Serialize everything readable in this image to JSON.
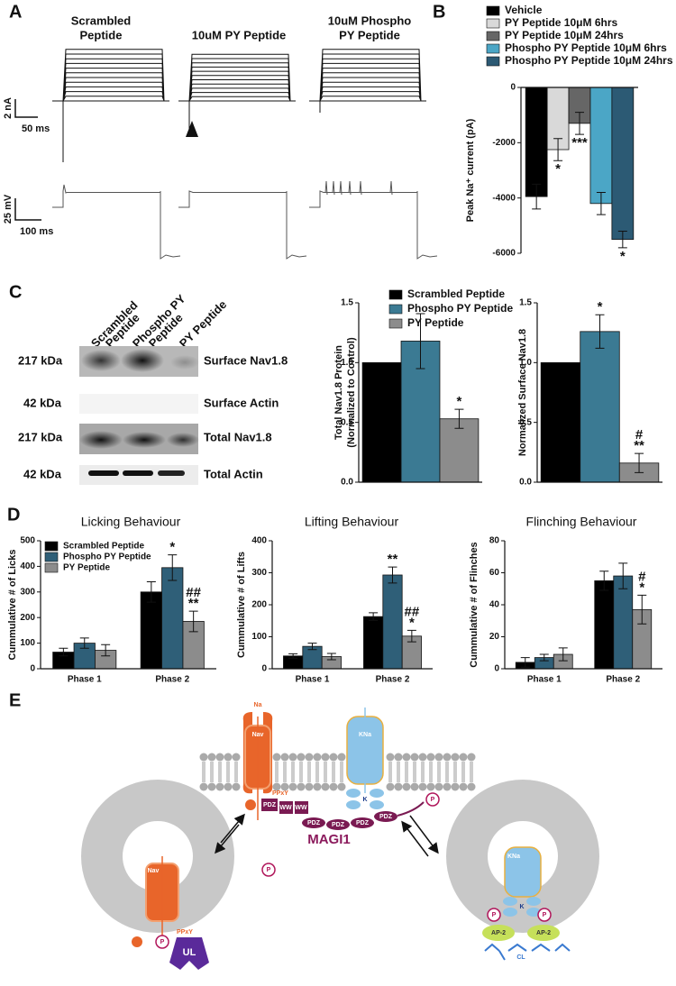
{
  "panels": {
    "a": "A",
    "b": "B",
    "c": "C",
    "d": "D",
    "e": "E"
  },
  "traces": {
    "headers": [
      [
        "Scrambled",
        "Peptide"
      ],
      [
        "10uM PY Peptide"
      ],
      [
        "10uM Phospho",
        "PY Peptide"
      ]
    ],
    "scale_current": "2 nA",
    "scale_time_current": "50 ms",
    "scale_voltage": "25 mV",
    "scale_time_voltage": "100 ms"
  },
  "blot": {
    "lanes": [
      [
        "Scrambled",
        "Peptide"
      ],
      [
        "Phospho PY",
        "Peptide"
      ],
      [
        "PY Peptide"
      ]
    ],
    "rows": [
      {
        "size": "217 kDa",
        "label": "Surface Nav1.8"
      },
      {
        "size": "42 kDa",
        "label": "Surface Actin"
      },
      {
        "size": "217 kDa",
        "label": "Total Nav1.8"
      },
      {
        "size": "42 kDa",
        "label": "Total Actin"
      }
    ]
  },
  "chart_data": [
    {
      "type": "bar",
      "ylabel": "Peak Na⁺ current (pA)",
      "ylim": [
        -6000,
        0
      ],
      "yticks": [
        0,
        -2000,
        -4000,
        -6000
      ],
      "legend": true,
      "series": [
        {
          "name": "Vehicle",
          "color": "#000000",
          "values": [
            -3950
          ],
          "errors": [
            450
          ],
          "annotations": [
            null
          ]
        },
        {
          "name": "PY Peptide 10μM 6hrs",
          "color": "#d9d9d9",
          "values": [
            -2250
          ],
          "errors": [
            400
          ],
          "annotations": [
            [
              "*"
            ]
          ]
        },
        {
          "name": "PY Peptide 10μM 24hrs",
          "color": "#666666",
          "values": [
            -1300
          ],
          "errors": [
            400
          ],
          "annotations": [
            [
              "***"
            ]
          ]
        },
        {
          "name": "Phospho PY Peptide 10μM 6hrs",
          "color": "#4ba6c6",
          "values": [
            -4200
          ],
          "errors": [
            400
          ],
          "annotations": [
            null
          ]
        },
        {
          "name": "Phospho PY Peptide 10μM 24hrs",
          "color": "#2c5a74",
          "values": [
            -5500
          ],
          "errors": [
            300
          ],
          "annotations": [
            [
              "*"
            ]
          ]
        }
      ]
    },
    {
      "type": "bar",
      "ylabel": [
        "Total Nav1.8 Protein",
        "(Normalized to Control)"
      ],
      "ylim": [
        0,
        1.5
      ],
      "yticks": [
        {
          "value": 0,
          "label": "0.0"
        },
        {
          "value": 0.5,
          "label": "0.5"
        },
        {
          "value": 1,
          "label": "1.0"
        },
        {
          "value": 1.5,
          "label": "1.5"
        }
      ],
      "legend": true,
      "series": [
        {
          "name": "Scrambled Peptide",
          "color": "#000000",
          "values": [
            1.0
          ],
          "errors": [
            0
          ],
          "annotations": [
            null
          ]
        },
        {
          "name": "Phospho PY Peptide",
          "color": "#3b7a93",
          "values": [
            1.18
          ],
          "errors": [
            0.23
          ],
          "annotations": [
            null
          ]
        },
        {
          "name": "PY Peptide",
          "color": "#8c8c8c",
          "values": [
            0.53
          ],
          "errors": [
            0.08
          ],
          "annotations": [
            [
              "*"
            ]
          ]
        }
      ]
    },
    {
      "type": "bar",
      "ylabel": [
        "Normalized Surface Nav1.8"
      ],
      "ylim": [
        0,
        1.5
      ],
      "yticks": [
        {
          "value": 0,
          "label": "0.0"
        },
        {
          "value": 0.5,
          "label": "0.5"
        },
        {
          "value": 1,
          "label": "1.0"
        },
        {
          "value": 1.5,
          "label": "1.5"
        }
      ],
      "legend": false,
      "series": [
        {
          "name": "Scrambled Peptide",
          "color": "#000000",
          "values": [
            1.0
          ],
          "errors": [
            0
          ],
          "annotations": [
            null
          ]
        },
        {
          "name": "Phospho PY Peptide",
          "color": "#3b7a93",
          "values": [
            1.26
          ],
          "errors": [
            0.14
          ],
          "annotations": [
            [
              "*"
            ]
          ]
        },
        {
          "name": "PY Peptide",
          "color": "#8c8c8c",
          "values": [
            0.16
          ],
          "errors": [
            0.08
          ],
          "annotations": [
            [
              "#",
              "**"
            ]
          ]
        }
      ]
    },
    {
      "type": "bar",
      "title": "Licking Behaviour",
      "ylabel": [
        "Cummulative # of Licks"
      ],
      "categories": [
        "Phase 1",
        "Phase 2"
      ],
      "ylim": [
        0,
        500
      ],
      "yticks": [
        0,
        100,
        200,
        300,
        400,
        500
      ],
      "legend": true,
      "series": [
        {
          "name": "Scrambled Peptide",
          "color": "#000000",
          "values": [
            65,
            300
          ],
          "errors": [
            15,
            40
          ],
          "annotations": [
            null,
            null
          ]
        },
        {
          "name": "Phospho PY Peptide",
          "color": "#2f5f78",
          "values": [
            100,
            395
          ],
          "errors": [
            20,
            50
          ],
          "annotations": [
            null,
            [
              "*"
            ]
          ]
        },
        {
          "name": "PY Peptide",
          "color": "#8c8c8c",
          "values": [
            72,
            185
          ],
          "errors": [
            22,
            40
          ],
          "annotations": [
            null,
            [
              "##",
              "**"
            ]
          ]
        }
      ]
    },
    {
      "type": "bar",
      "title": "Lifting Behaviour",
      "ylabel": [
        "Cummulative # of Lifts"
      ],
      "categories": [
        "Phase 1",
        "Phase 2"
      ],
      "ylim": [
        0,
        400
      ],
      "yticks": [
        0,
        100,
        200,
        300,
        400
      ],
      "legend": false,
      "series": [
        {
          "name": "Scrambled Peptide",
          "color": "#000000",
          "values": [
            40,
            163
          ],
          "errors": [
            7,
            12
          ],
          "annotations": [
            null,
            null
          ]
        },
        {
          "name": "Phospho PY Peptide",
          "color": "#2f5f78",
          "values": [
            70,
            293
          ],
          "errors": [
            10,
            25
          ],
          "annotations": [
            null,
            [
              "**"
            ]
          ]
        },
        {
          "name": "PY Peptide",
          "color": "#8c8c8c",
          "values": [
            38,
            102
          ],
          "errors": [
            10,
            18
          ],
          "annotations": [
            null,
            [
              "##",
              "*"
            ]
          ]
        }
      ]
    },
    {
      "type": "bar",
      "title": "Flinching Behaviour",
      "ylabel": [
        "Cummulative # of Flinches"
      ],
      "categories": [
        "Phase 1",
        "Phase 2"
      ],
      "ylim": [
        0,
        80
      ],
      "yticks": [
        0,
        20,
        40,
        60,
        80
      ],
      "legend": false,
      "series": [
        {
          "name": "Scrambled Peptide",
          "color": "#000000",
          "values": [
            4,
            55
          ],
          "errors": [
            3,
            6
          ],
          "annotations": [
            null,
            null
          ]
        },
        {
          "name": "Phospho PY Peptide",
          "color": "#2f5f78",
          "values": [
            7,
            58
          ],
          "errors": [
            2,
            8
          ],
          "annotations": [
            null,
            null
          ]
        },
        {
          "name": "PY Peptide",
          "color": "#8c8c8c",
          "values": [
            9,
            37
          ],
          "errors": [
            4,
            9
          ],
          "annotations": [
            null,
            [
              "#",
              "*"
            ]
          ]
        }
      ]
    }
  ],
  "diagram": {
    "labels": [
      "Na",
      "Nav",
      "PPxY",
      "PDZ",
      "WW",
      "WW",
      "KNa",
      "K",
      "PDZ",
      "PDZ",
      "PDZ",
      "PDZ",
      "P",
      "P",
      "MAGI1",
      "Nav",
      "PPxY",
      "P",
      "UL",
      "KNa",
      "K",
      "P",
      "P",
      "AP-2",
      "AP-2",
      "CL"
    ]
  }
}
